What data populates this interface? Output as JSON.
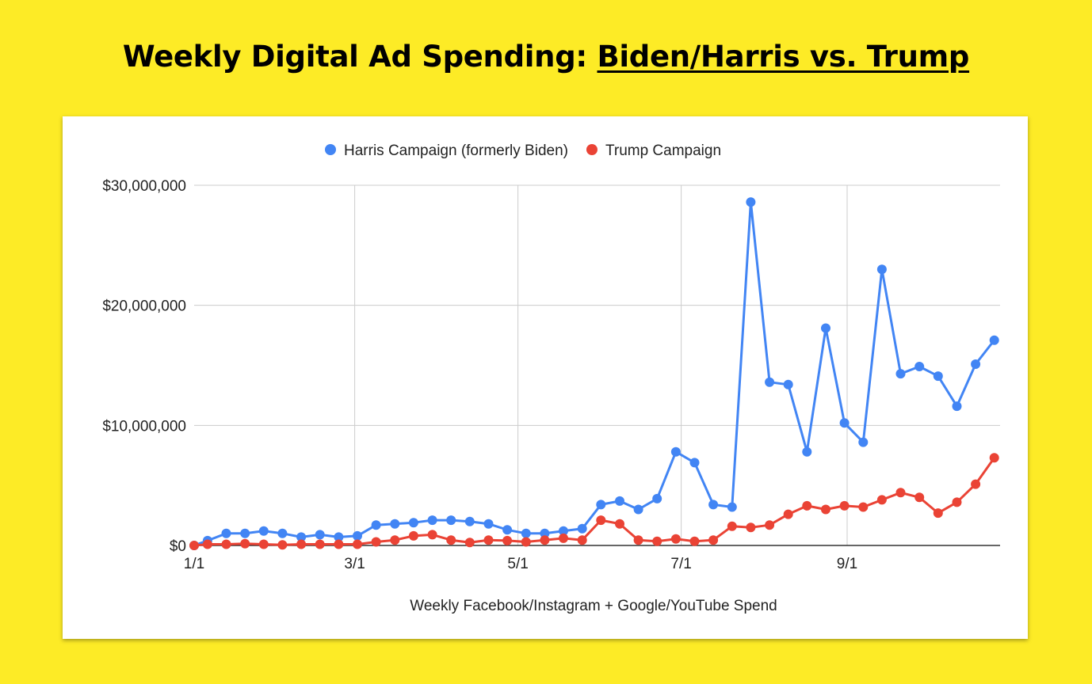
{
  "title": {
    "prefix": "Weekly Digital Ad Spending: ",
    "underlined": "Biden/Harris vs. Trump"
  },
  "chart_data": {
    "type": "line",
    "title": "Weekly Digital Ad Spending: Biden/Harris vs. Trump",
    "xlabel": "Weekly Facebook/Instagram + Google/YouTube Spend",
    "ylabel": "",
    "x_ticks": [
      "1/1",
      "3/1",
      "5/1",
      "7/1",
      "9/1"
    ],
    "y_ticks": [
      "$0",
      "$10,000,000",
      "$20,000,000",
      "$30,000,000"
    ],
    "ylim": [
      0,
      30000000
    ],
    "grid": true,
    "legend_position": "top",
    "series": [
      {
        "name": "Harris Campaign (formerly Biden)",
        "color": "#4285f4",
        "x": [
          "1/1",
          "1/6",
          "1/13",
          "1/20",
          "1/27",
          "2/3",
          "2/10",
          "2/17",
          "2/24",
          "3/2",
          "3/9",
          "3/16",
          "3/23",
          "3/30",
          "4/6",
          "4/13",
          "4/20",
          "4/27",
          "5/4",
          "5/11",
          "5/18",
          "5/25",
          "6/1",
          "6/8",
          "6/15",
          "6/22",
          "6/29",
          "7/6",
          "7/13",
          "7/20",
          "7/27",
          "8/3",
          "8/10",
          "8/17",
          "8/24",
          "8/31",
          "9/7",
          "9/14",
          "9/21",
          "9/28",
          "10/5",
          "10/12",
          "10/19",
          "10/26"
        ],
        "values": [
          0,
          400000,
          1000000,
          1000000,
          1200000,
          1000000,
          700000,
          900000,
          700000,
          800000,
          1700000,
          1800000,
          1900000,
          2100000,
          2100000,
          2000000,
          1800000,
          1300000,
          1000000,
          1000000,
          1200000,
          1400000,
          3400000,
          3700000,
          3000000,
          3900000,
          7800000,
          6900000,
          3400000,
          3200000,
          28600000,
          13600000,
          13400000,
          7800000,
          18100000,
          10200000,
          8600000,
          23000000,
          14300000,
          14900000,
          14100000,
          11600000,
          15100000,
          17100000
        ]
      },
      {
        "name": "Trump Campaign",
        "color": "#ea4335",
        "x": [
          "1/1",
          "1/6",
          "1/13",
          "1/20",
          "1/27",
          "2/3",
          "2/10",
          "2/17",
          "2/24",
          "3/2",
          "3/9",
          "3/16",
          "3/23",
          "3/30",
          "4/6",
          "4/13",
          "4/20",
          "4/27",
          "5/4",
          "5/11",
          "5/18",
          "5/25",
          "6/1",
          "6/8",
          "6/15",
          "6/22",
          "6/29",
          "7/6",
          "7/13",
          "7/20",
          "7/27",
          "8/3",
          "8/10",
          "8/17",
          "8/24",
          "8/31",
          "9/7",
          "9/14",
          "9/21",
          "9/28",
          "10/5",
          "10/12",
          "10/19",
          "10/26"
        ],
        "values": [
          0,
          100000,
          100000,
          150000,
          100000,
          50000,
          100000,
          100000,
          100000,
          100000,
          300000,
          450000,
          800000,
          900000,
          450000,
          250000,
          450000,
          400000,
          300000,
          450000,
          600000,
          450000,
          2100000,
          1800000,
          450000,
          350000,
          550000,
          350000,
          450000,
          1600000,
          1500000,
          1700000,
          2600000,
          3300000,
          3000000,
          3300000,
          3200000,
          3800000,
          4400000,
          4000000,
          2700000,
          3600000,
          5100000,
          7300000
        ]
      }
    ]
  }
}
